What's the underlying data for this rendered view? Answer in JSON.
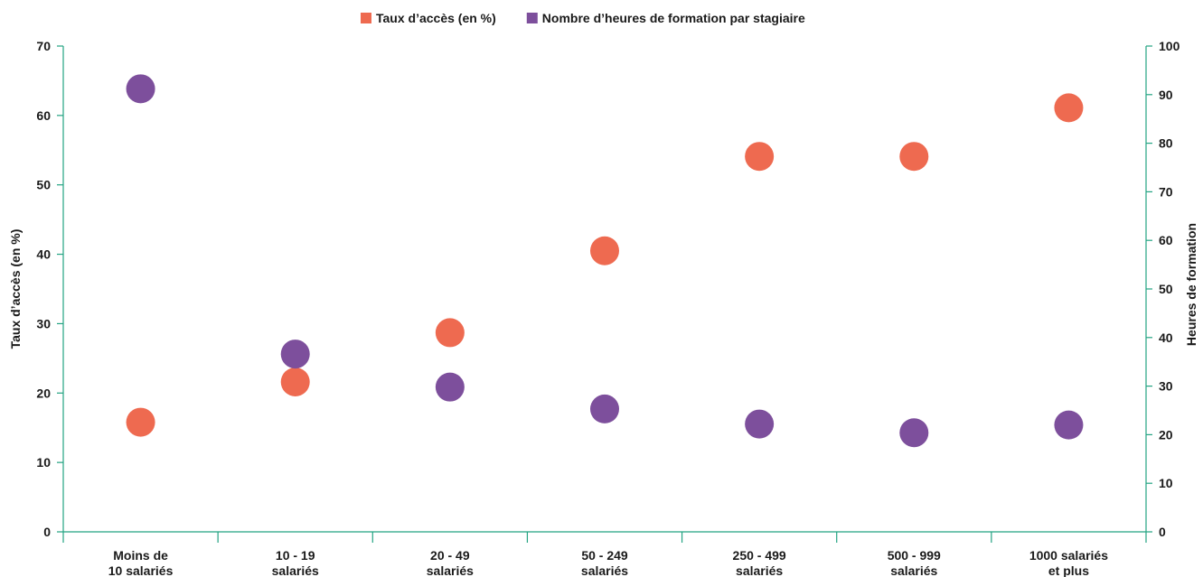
{
  "chart_data": {
    "type": "scatter",
    "categories": [
      [
        "Moins de",
        "10 salariés"
      ],
      [
        "10 - 19",
        "salariés"
      ],
      [
        "20 - 49",
        "salariés"
      ],
      [
        "50 - 249",
        "salariés"
      ],
      [
        "250 - 499",
        "salariés"
      ],
      [
        "500 - 999",
        "salariés"
      ],
      [
        "1000 salariés",
        "et plus"
      ]
    ],
    "series": [
      {
        "name": "Taux d’accès (en %)",
        "axis": "left",
        "color": "#ee6a50",
        "values": [
          15.8,
          21.6,
          28.7,
          40.5,
          54.1,
          54.1,
          61.1
        ]
      },
      {
        "name": "Nombre d’heures de formation par stagiaire",
        "axis": "right",
        "color": "#7d4f9c",
        "values": [
          91.2,
          36.6,
          29.8,
          25.3,
          22.2,
          20.4,
          22.0
        ]
      }
    ],
    "y_left": {
      "label": "Taux d’accès (en %)",
      "ylim": [
        0,
        70
      ],
      "ticks": [
        "0",
        "10",
        "20",
        "30",
        "40",
        "50",
        "60",
        "70"
      ]
    },
    "y_right": {
      "label": "Heures de formation",
      "ylim": [
        0,
        100
      ],
      "ticks": [
        "0",
        "10",
        "20",
        "30",
        "40",
        "50",
        "60",
        "70",
        "80",
        "90",
        "100"
      ]
    },
    "axis_color": "#23a382",
    "legend_position": "top-center",
    "grid": false
  }
}
